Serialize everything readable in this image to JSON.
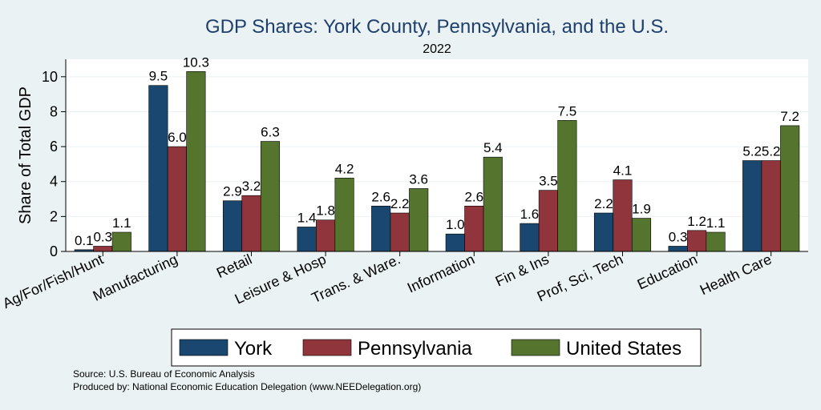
{
  "chart_data": {
    "type": "bar",
    "title": "GDP Shares: York County, Pennsylvania, and the U.S.",
    "subtitle": "2022",
    "xlabel": "",
    "ylabel": "Share of Total GDP",
    "ylim": [
      0,
      11
    ],
    "yticks": [
      0,
      2,
      4,
      6,
      8,
      10
    ],
    "grid": true,
    "legend_position": "bottom",
    "categories": [
      "Ag/For/Fish/Hunt",
      "Manufacturing",
      "Retail",
      "Leisure & Hosp",
      "Trans. & Ware.",
      "Information",
      "Fin & Ins",
      "Prof, Sci, Tech",
      "Education",
      "Health Care"
    ],
    "series": [
      {
        "name": "York",
        "color": "#1a476f",
        "values": [
          0.1,
          9.5,
          2.9,
          1.4,
          2.6,
          1.0,
          1.6,
          2.2,
          0.3,
          5.2
        ]
      },
      {
        "name": "Pennsylvania",
        "color": "#90353b",
        "values": [
          0.3,
          6.0,
          3.2,
          1.8,
          2.2,
          2.6,
          3.5,
          4.1,
          1.2,
          5.2
        ]
      },
      {
        "name": "United States",
        "color": "#55752f",
        "values": [
          1.1,
          10.3,
          6.3,
          4.2,
          3.6,
          5.4,
          7.5,
          1.9,
          1.1,
          7.2
        ]
      }
    ]
  },
  "notes": {
    "source": "Source: U.S. Bureau of Economic Analysis",
    "produced_by": "Produced by: National Economic Education Delegation (www.NEEDelegation.org)"
  }
}
